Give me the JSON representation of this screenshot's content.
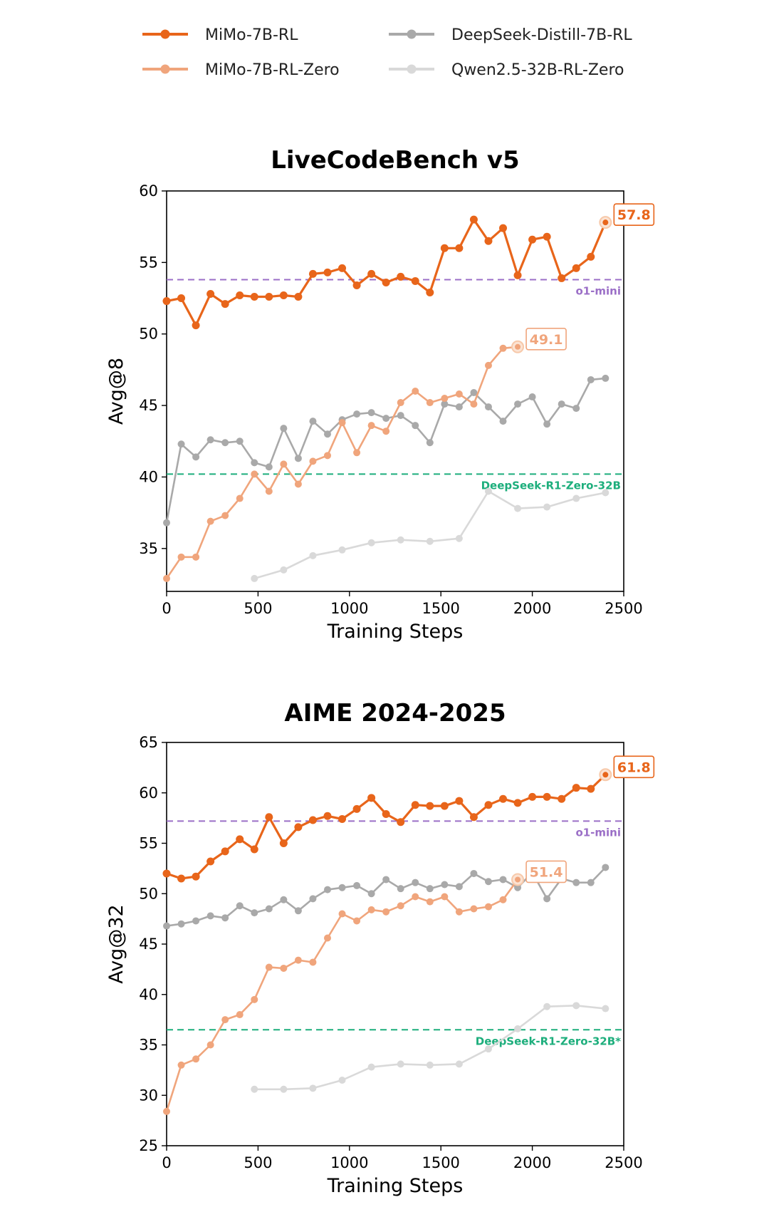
{
  "legend": {
    "items": [
      {
        "name": "MiMo-7B-RL",
        "color": "#e8651a"
      },
      {
        "name": "MiMo-7B-RL-Zero",
        "color": "#f0a57c"
      },
      {
        "name": "DeepSeek-Distill-7B-RL",
        "color": "#a9a9a9"
      },
      {
        "name": "Qwen2.5-32B-RL-Zero",
        "color": "#d9d9d9"
      }
    ]
  },
  "chart_data": [
    {
      "type": "line",
      "title": "LiveCodeBench v5",
      "xlabel": "Training Steps",
      "ylabel": "Avg@8",
      "xlim": [
        0,
        2500
      ],
      "ylim": [
        32,
        60
      ],
      "xticks": [
        0,
        500,
        1000,
        1500,
        2000,
        2500
      ],
      "yticks": [
        35,
        40,
        45,
        50,
        55,
        60
      ],
      "series": [
        {
          "name": "MiMo-7B-RL",
          "color": "#e8651a",
          "x": [
            0,
            80,
            160,
            240,
            320,
            400,
            480,
            560,
            640,
            720,
            800,
            880,
            960,
            1040,
            1120,
            1200,
            1280,
            1360,
            1440,
            1520,
            1600,
            1680,
            1760,
            1840,
            1920,
            2000,
            2080,
            2160,
            2240,
            2320,
            2400
          ],
          "y": [
            52.3,
            52.5,
            50.6,
            52.8,
            52.1,
            52.7,
            52.6,
            52.6,
            52.7,
            52.6,
            54.2,
            54.3,
            54.6,
            53.4,
            54.2,
            53.6,
            54.0,
            53.7,
            52.9,
            56.0,
            56.0,
            58.0,
            56.5,
            57.4,
            54.1,
            56.6,
            56.8,
            53.9,
            54.6,
            55.4,
            57.8
          ]
        },
        {
          "name": "MiMo-7B-RL-Zero",
          "color": "#f0a57c",
          "x": [
            0,
            80,
            160,
            240,
            320,
            400,
            480,
            560,
            640,
            720,
            800,
            880,
            960,
            1040,
            1120,
            1200,
            1280,
            1360,
            1440,
            1520,
            1600,
            1680,
            1760,
            1840,
            1920
          ],
          "y": [
            32.9,
            34.4,
            34.4,
            36.9,
            37.3,
            38.5,
            40.2,
            39.0,
            40.9,
            39.5,
            41.1,
            41.5,
            43.8,
            41.7,
            43.6,
            43.2,
            45.2,
            46.0,
            45.2,
            45.5,
            45.8,
            45.1,
            47.8,
            49.0,
            49.1
          ]
        },
        {
          "name": "DeepSeek-Distill-7B-RL",
          "color": "#a9a9a9",
          "x": [
            0,
            80,
            160,
            240,
            320,
            400,
            480,
            560,
            640,
            720,
            800,
            880,
            960,
            1040,
            1120,
            1200,
            1280,
            1360,
            1440,
            1520,
            1600,
            1680,
            1760,
            1840,
            1920,
            2000,
            2080,
            2160,
            2240,
            2320,
            2400
          ],
          "y": [
            36.8,
            42.3,
            41.4,
            42.6,
            42.4,
            42.5,
            41.0,
            40.7,
            43.4,
            41.3,
            43.9,
            43.0,
            44.0,
            44.4,
            44.5,
            44.1,
            44.3,
            43.6,
            42.4,
            45.1,
            44.9,
            45.9,
            44.9,
            43.9,
            45.1,
            45.6,
            43.7,
            45.1,
            44.8,
            46.8,
            46.9
          ]
        },
        {
          "name": "Qwen2.5-32B-RL-Zero",
          "color": "#d9d9d9",
          "x": [
            480,
            640,
            800,
            960,
            1120,
            1280,
            1440,
            1600,
            1760,
            1920,
            2080,
            2240,
            2400
          ],
          "y": [
            32.9,
            33.5,
            34.5,
            34.9,
            35.4,
            35.6,
            35.5,
            35.7,
            39.0,
            37.8,
            37.9,
            38.5,
            38.9
          ]
        }
      ],
      "reference_lines": [
        {
          "label": "o1-mini",
          "y": 53.8,
          "color": "#9b6fc7"
        },
        {
          "label": "DeepSeek-R1-Zero-32B",
          "y": 40.2,
          "color": "#1dae7c"
        }
      ],
      "annotations": [
        {
          "text": "57.8",
          "series": "MiMo-7B-RL",
          "x": 2400,
          "y": 57.8,
          "color": "#e8651a"
        },
        {
          "text": "49.1",
          "series": "MiMo-7B-RL-Zero",
          "x": 1920,
          "y": 49.1,
          "color": "#f0a57c"
        }
      ]
    },
    {
      "type": "line",
      "title": "AIME 2024-2025",
      "xlabel": "Training Steps",
      "ylabel": "Avg@32",
      "xlim": [
        0,
        2500
      ],
      "ylim": [
        25,
        65
      ],
      "xticks": [
        0,
        500,
        1000,
        1500,
        2000,
        2500
      ],
      "yticks": [
        25,
        30,
        35,
        40,
        45,
        50,
        55,
        60,
        65
      ],
      "series": [
        {
          "name": "MiMo-7B-RL",
          "color": "#e8651a",
          "x": [
            0,
            80,
            160,
            240,
            320,
            400,
            480,
            560,
            640,
            720,
            800,
            880,
            960,
            1040,
            1120,
            1200,
            1280,
            1360,
            1440,
            1520,
            1600,
            1680,
            1760,
            1840,
            1920,
            2000,
            2080,
            2160,
            2240,
            2320,
            2400
          ],
          "y": [
            52.0,
            51.5,
            51.7,
            53.2,
            54.2,
            55.4,
            54.4,
            57.6,
            55.0,
            56.6,
            57.3,
            57.7,
            57.4,
            58.4,
            59.5,
            57.9,
            57.1,
            58.8,
            58.7,
            58.7,
            59.2,
            57.6,
            58.8,
            59.4,
            59.0,
            59.6,
            59.6,
            59.4,
            60.5,
            60.4,
            61.8
          ]
        },
        {
          "name": "MiMo-7B-RL-Zero",
          "color": "#f0a57c",
          "x": [
            0,
            80,
            160,
            240,
            320,
            400,
            480,
            560,
            640,
            720,
            800,
            880,
            960,
            1040,
            1120,
            1200,
            1280,
            1360,
            1440,
            1520,
            1600,
            1680,
            1760,
            1840,
            1920
          ],
          "y": [
            28.4,
            33.0,
            33.6,
            35.0,
            37.5,
            38.0,
            39.5,
            42.7,
            42.6,
            43.4,
            43.2,
            45.6,
            48.0,
            47.3,
            48.4,
            48.2,
            48.8,
            49.7,
            49.2,
            49.7,
            48.2,
            48.5,
            48.7,
            49.4,
            51.4
          ]
        },
        {
          "name": "DeepSeek-Distill-7B-RL",
          "color": "#a9a9a9",
          "x": [
            0,
            80,
            160,
            240,
            320,
            400,
            480,
            560,
            640,
            720,
            800,
            880,
            960,
            1040,
            1120,
            1200,
            1280,
            1360,
            1440,
            1520,
            1600,
            1680,
            1760,
            1840,
            1920,
            2000,
            2080,
            2160,
            2240,
            2320,
            2400
          ],
          "y": [
            46.8,
            47.0,
            47.3,
            47.8,
            47.6,
            48.8,
            48.1,
            48.5,
            49.4,
            48.3,
            49.5,
            50.4,
            50.6,
            50.8,
            50.0,
            51.4,
            50.5,
            51.1,
            50.5,
            50.9,
            50.7,
            52.0,
            51.2,
            51.4,
            50.6,
            52.1,
            49.5,
            51.5,
            51.1,
            51.1,
            52.6
          ]
        },
        {
          "name": "Qwen2.5-32B-RL-Zero",
          "color": "#d9d9d9",
          "x": [
            480,
            640,
            800,
            960,
            1120,
            1280,
            1440,
            1600,
            1760,
            1920,
            2080,
            2240,
            2400
          ],
          "y": [
            30.6,
            30.6,
            30.7,
            31.5,
            32.8,
            33.1,
            33.0,
            33.1,
            34.6,
            36.6,
            38.8,
            38.9,
            38.6
          ]
        }
      ],
      "reference_lines": [
        {
          "label": "o1-mini",
          "y": 57.2,
          "color": "#9b6fc7"
        },
        {
          "label": "DeepSeek-R1-Zero-32B*",
          "y": 36.5,
          "color": "#1dae7c"
        }
      ],
      "annotations": [
        {
          "text": "61.8",
          "series": "MiMo-7B-RL",
          "x": 2400,
          "y": 61.8,
          "color": "#e8651a"
        },
        {
          "text": "51.4",
          "series": "MiMo-7B-RL-Zero",
          "x": 1920,
          "y": 51.4,
          "color": "#f0a57c"
        }
      ]
    }
  ]
}
